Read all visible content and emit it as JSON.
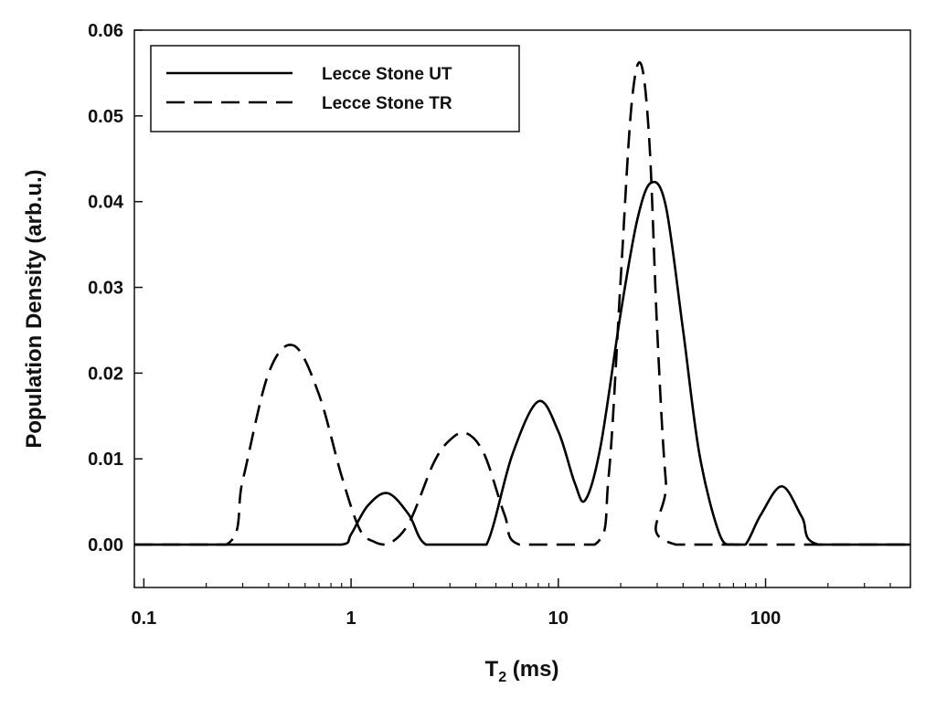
{
  "chart_data": {
    "type": "line",
    "title": "",
    "xlabel": "T",
    "xlabel_sub": "2",
    "xlabel_unit": " (ms)",
    "ylabel": "Population Density (arb.u.)",
    "xscale": "log",
    "xlim": [
      0.09,
      500
    ],
    "ylim": [
      -0.005,
      0.06
    ],
    "grid": false,
    "legend_position": "top-left",
    "x_ticks": [
      0.1,
      1,
      10,
      100
    ],
    "x_tick_labels": [
      "0.1",
      "1",
      "10",
      "100"
    ],
    "y_ticks": [
      0.0,
      0.01,
      0.02,
      0.03,
      0.04,
      0.05,
      0.06
    ],
    "y_tick_labels": [
      "0.00",
      "0.01",
      "0.02",
      "0.03",
      "0.04",
      "0.05",
      "0.06"
    ],
    "series": [
      {
        "name": "Lecce Stone UT",
        "line_style": "solid",
        "color": "#000000",
        "x": [
          0.09,
          0.5,
          0.9,
          1.0,
          1.2,
          1.5,
          1.9,
          2.3,
          3.5,
          4.5,
          6.0,
          8.0,
          10.0,
          12.0,
          13.5,
          16.0,
          20.0,
          24.0,
          28.0,
          33.0,
          40.0,
          48.0,
          60.0,
          70.0,
          80.0,
          95.0,
          120.0,
          150.0,
          180.0,
          500.0
        ],
        "y": [
          0.0,
          0.0,
          0.0,
          0.0012,
          0.0045,
          0.006,
          0.0035,
          0.0,
          0.0,
          0.0,
          0.0105,
          0.0167,
          0.0132,
          0.0072,
          0.0052,
          0.0115,
          0.027,
          0.0378,
          0.0422,
          0.0395,
          0.025,
          0.0105,
          0.0012,
          0.0,
          0.0,
          0.0035,
          0.0068,
          0.0032,
          0.0,
          0.0
        ]
      },
      {
        "name": "Lecce Stone TR",
        "line_style": "dashed",
        "color": "#000000",
        "x": [
          0.09,
          0.25,
          0.3,
          0.4,
          0.53,
          0.7,
          0.9,
          1.1,
          1.3,
          1.5,
          1.9,
          2.5,
          3.0,
          3.6,
          4.4,
          5.5,
          6.5,
          15.0,
          17.5,
          20.0,
          22.5,
          25.0,
          27.5,
          30.0,
          33.0,
          37.0,
          500.0
        ],
        "y": [
          0.0,
          0.0,
          0.0075,
          0.02,
          0.0232,
          0.0175,
          0.008,
          0.0018,
          0.0003,
          0.0,
          0.0025,
          0.0095,
          0.0122,
          0.013,
          0.0105,
          0.0035,
          0.0,
          0.0,
          0.008,
          0.031,
          0.051,
          0.0561,
          0.047,
          0.025,
          0.0075,
          0.0,
          0.0
        ]
      }
    ]
  }
}
